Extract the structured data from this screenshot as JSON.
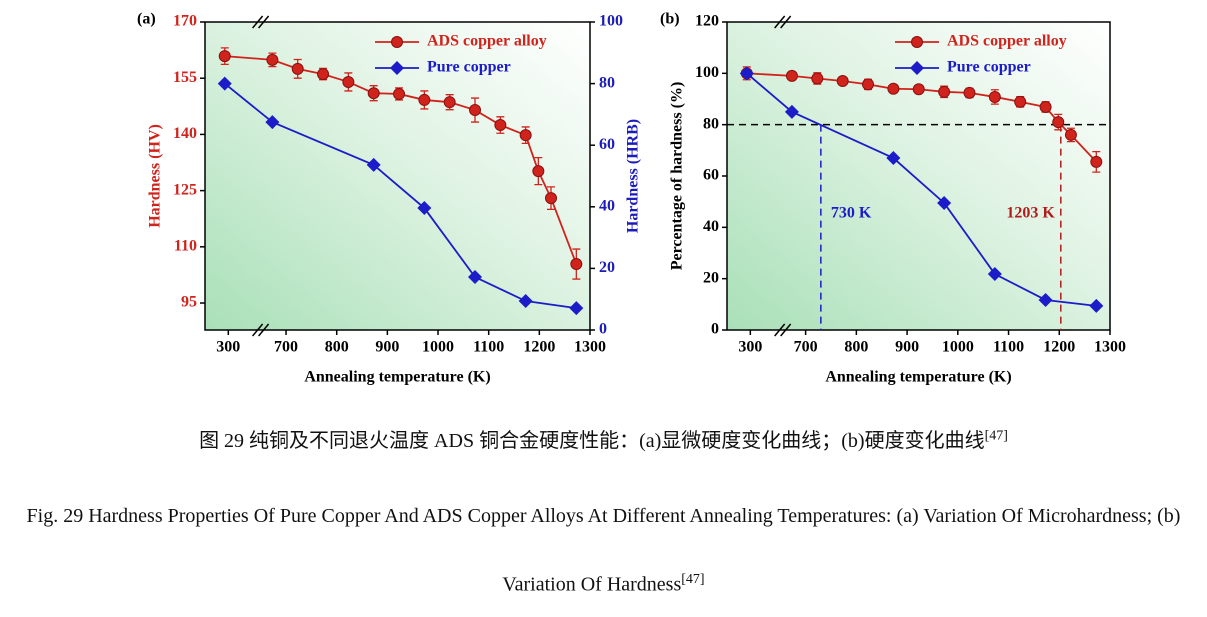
{
  "chart_data": [
    {
      "type": "line",
      "panel_label": "(a)",
      "x_label": "Annealing temperature (K)",
      "y_label": "Hardness (HV)",
      "y2_label": "Hardness (HRB)",
      "xlim": [
        254,
        1300
      ],
      "xbreak": [
        344,
        630
      ],
      "xticks": [
        300,
        700,
        800,
        900,
        1000,
        1100,
        1200,
        1300
      ],
      "ylim": [
        87.8,
        170
      ],
      "yticks": [
        95,
        110,
        125,
        140,
        155,
        170
      ],
      "y_color": "#d0231c",
      "y2lim": [
        0,
        100
      ],
      "y2ticks": [
        0,
        20,
        40,
        60,
        80,
        100
      ],
      "y2_color": "#1c1cb8",
      "legend": "upper right",
      "series": [
        {
          "name": "ADS copper alloy",
          "color": "#d0231c",
          "marker": "circle",
          "x": [
            293,
            673,
            723,
            773,
            823,
            873,
            923,
            973,
            1023,
            1073,
            1123,
            1173,
            1198,
            1223,
            1273
          ],
          "values": [
            160.9,
            159.9,
            157.5,
            156.1,
            154,
            151,
            150.8,
            149.2,
            148.6,
            146.5,
            142.5,
            139.8,
            130.2,
            123,
            105.4
          ],
          "errors": [
            2.2,
            1.8,
            2.5,
            1.5,
            2.4,
            2,
            1.6,
            2.4,
            2,
            3.2,
            2.2,
            2.2,
            3.6,
            3,
            4
          ]
        },
        {
          "name": "Pure copper",
          "color": "#1c1cc8",
          "marker": "diamond",
          "axis": "y2",
          "x": [
            293,
            673,
            873,
            973,
            1073,
            1173,
            1273
          ],
          "values": [
            80,
            67.5,
            53.6,
            39.6,
            17.2,
            9.4,
            7.1
          ]
        }
      ]
    },
    {
      "type": "line",
      "panel_label": "(b)",
      "x_label": "Annealing temperature (K)",
      "y_label": "Percentage of hardness (%)",
      "xlim": [
        254,
        1300
      ],
      "xbreak": [
        344,
        635
      ],
      "xticks": [
        300,
        700,
        800,
        900,
        1000,
        1100,
        1200,
        1300
      ],
      "ylim": [
        0,
        120
      ],
      "yticks": [
        0,
        20,
        40,
        60,
        80,
        100,
        120
      ],
      "legend": "upper right",
      "hline": 80,
      "annotations": [
        {
          "text": "730 K",
          "x": 730,
          "color": "#1c1cc8"
        },
        {
          "text": "1203 K",
          "x": 1203,
          "color": "#b01c1c"
        }
      ],
      "series": [
        {
          "name": "ADS copper alloy",
          "color": "#d0231c",
          "marker": "circle",
          "x": [
            293,
            673,
            723,
            773,
            823,
            873,
            923,
            973,
            1023,
            1073,
            1123,
            1173,
            1198,
            1223,
            1273
          ],
          "values": [
            100,
            99,
            98,
            97,
            95.7,
            94,
            93.8,
            92.8,
            92.4,
            90.8,
            88.9,
            86.9,
            81,
            76,
            65.5
          ],
          "errors": [
            2.5,
            1.5,
            2.2,
            1.2,
            2,
            1.5,
            1.2,
            2.2,
            1.8,
            2.8,
            2,
            2,
            3,
            2.6,
            4
          ]
        },
        {
          "name": "Pure copper",
          "color": "#1c1cc8",
          "marker": "diamond",
          "x": [
            293,
            673,
            873,
            973,
            1073,
            1173,
            1273
          ],
          "values": [
            100,
            85,
            67,
            49.5,
            21.8,
            11.7,
            9.4
          ]
        }
      ]
    }
  ],
  "captions": {
    "zh": "图 29 纯铜及不同退火温度 ADS 铜合金硬度性能：(a)显微硬度变化曲线；(b)硬度变化曲线",
    "zh_ref": "[47]",
    "en": "Fig. 29 Hardness Properties Of Pure Copper And ADS Copper Alloys At Different Annealing Temperatures: (a) Variation Of Microhardness; (b) Variation Of Hardness",
    "en_ref": "[47]"
  }
}
